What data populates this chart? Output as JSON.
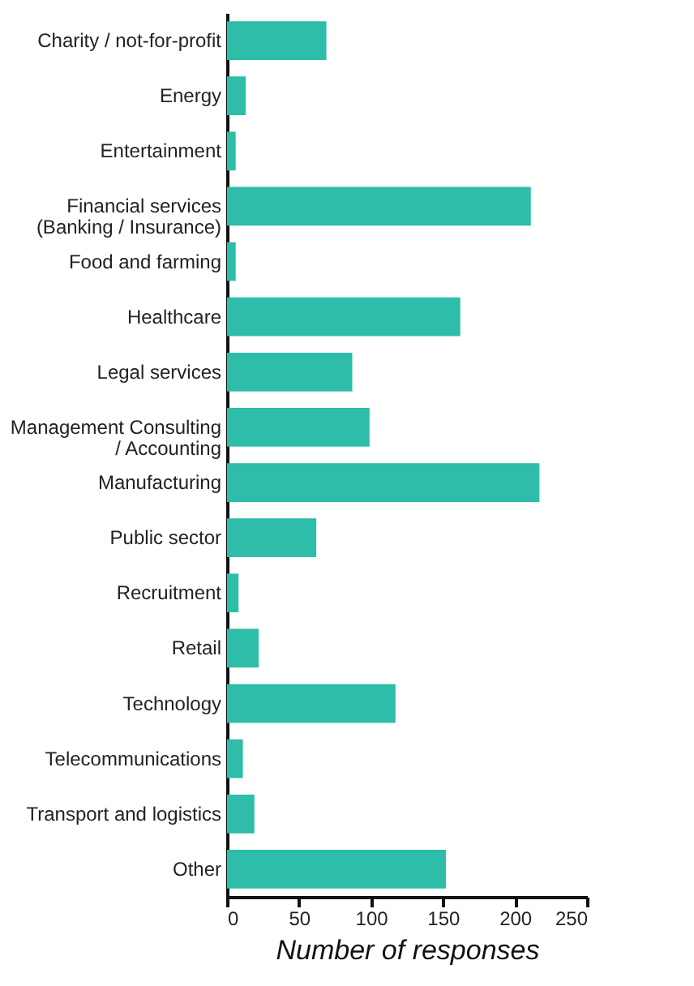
{
  "chart_data": {
    "type": "bar",
    "orientation": "horizontal",
    "xlabel": "Number of responses",
    "categories": [
      "Charity / not-for-profit",
      "Energy",
      "Entertainment",
      "Financial services\n(Banking / Insurance)",
      "Food and farming",
      "Healthcare",
      "Legal services",
      "Management Consulting\n/ Accounting",
      "Manufacturing",
      "Public sector",
      "Recruitment",
      "Retail",
      "Technology",
      "Telecommunications",
      "Transport and logistics",
      "Other"
    ],
    "values": [
      69,
      13,
      6,
      211,
      6,
      162,
      87,
      99,
      217,
      62,
      8,
      22,
      117,
      11,
      19,
      152
    ],
    "color": "#2dbda8",
    "xlim": [
      0,
      250
    ],
    "xticks": [
      0,
      50,
      100,
      150,
      200,
      250
    ]
  }
}
